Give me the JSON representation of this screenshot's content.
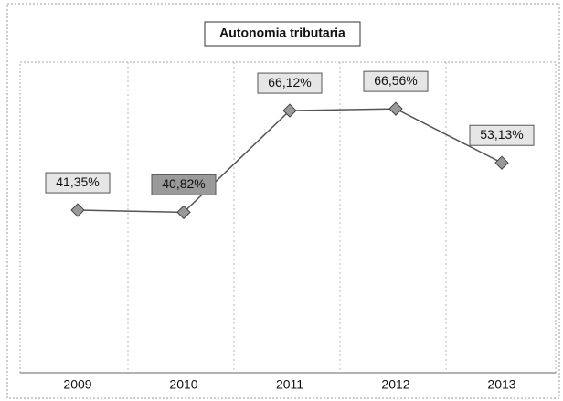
{
  "chart_data": {
    "type": "line",
    "title": "Autonomia tributaria",
    "categories": [
      "2009",
      "2010",
      "2011",
      "2012",
      "2013"
    ],
    "series": [
      {
        "name": "Autonomia tributaria",
        "color": "#555555",
        "values": [
          41.35,
          40.82,
          66.12,
          66.56,
          53.13
        ],
        "value_labels": [
          "41,35%",
          "40,82%",
          "66,12%",
          "66,56%",
          "53,13%"
        ]
      }
    ],
    "ylim": [
      0,
      80
    ]
  }
}
